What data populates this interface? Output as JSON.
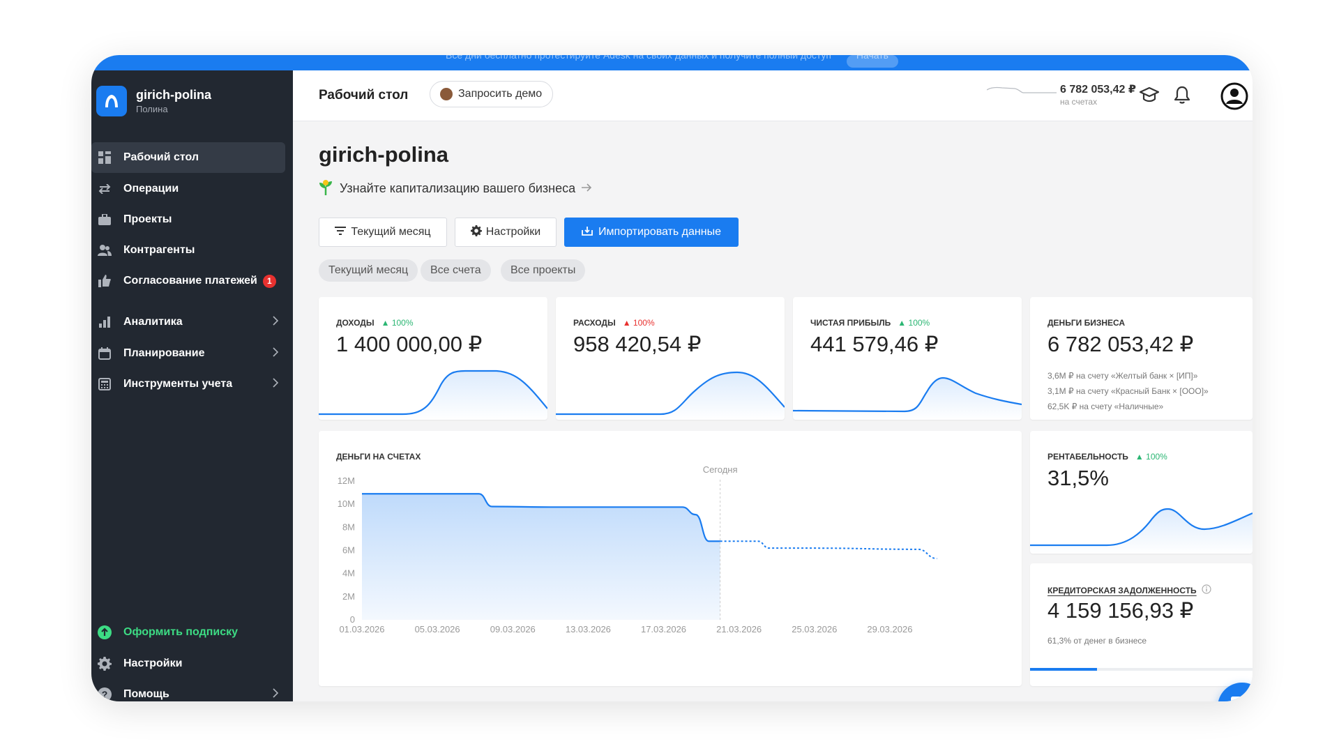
{
  "banner": {
    "text": "Все дни бесплатно протестируйте Adesk на своих данных и получите полный доступ",
    "button": "Начать"
  },
  "sidebar": {
    "brand": {
      "name": "girich-polina",
      "user": "Полина"
    },
    "items": [
      {
        "label": "Рабочий стол",
        "icon": "dashboard-icon",
        "active": true
      },
      {
        "label": "Операции",
        "icon": "transfer-icon"
      },
      {
        "label": "Проекты",
        "icon": "briefcase-icon"
      },
      {
        "label": "Контрагенты",
        "icon": "people-icon"
      },
      {
        "label": "Согласование платежей",
        "icon": "thumbs-up-icon",
        "badge": "1"
      },
      {
        "label": "Аналитика",
        "icon": "bar-chart-icon"
      },
      {
        "label": "Планирование",
        "icon": "calendar-icon"
      },
      {
        "label": "Инструменты учета",
        "icon": "calculator-icon"
      }
    ],
    "bottom": [
      {
        "label": "Оформить подписку",
        "icon": "arrow-up-circle-icon"
      },
      {
        "label": "Настройки",
        "icon": "gear-icon"
      },
      {
        "label": "Помощь",
        "icon": "help-icon"
      }
    ]
  },
  "topbar": {
    "title": "Рабочий стол",
    "demo": "Запросить демо",
    "balance": {
      "amount": "6 782 053,42 ₽",
      "sub": "на счетах"
    }
  },
  "main": {
    "heading": "girich-polina",
    "cap_link": "Узнайте капитализацию вашего бизнеса",
    "buttons": {
      "period": "Текущий месяц",
      "settings": "Настройки",
      "import": "Импортировать данные"
    },
    "chips": [
      "Текущий месяц",
      "Все счета",
      "Все проекты"
    ]
  },
  "cards": {
    "income": {
      "label": "ДОХОДЫ",
      "delta": "100%",
      "value": "1 400 000,00 ₽"
    },
    "expenses": {
      "label": "РАСХОДЫ",
      "delta": "100%",
      "value": "958 420,54 ₽"
    },
    "profit": {
      "label": "ЧИСТАЯ ПРИБЫЛЬ",
      "delta": "100%",
      "value": "441 579,46 ₽"
    },
    "business_money": {
      "label": "ДЕНЬГИ БИЗНЕСА",
      "value": "6 782 053,42 ₽",
      "notes": [
        "3,6M ₽ на счету «Желтый банк × [ИП]»",
        "3,1M ₽ на счету «Красный Банк × [ООО]»",
        "62,5K ₽ на счету «Наличные»"
      ]
    },
    "accounts": {
      "label": "ДЕНЬГИ НА СЧЕТАХ",
      "today": "Сегодня"
    },
    "rentability": {
      "label": "РЕНТАБЕЛЬНОСТЬ",
      "delta": "100%",
      "value": "31,5%"
    },
    "payables": {
      "label": "КРЕДИТОРСКАЯ ЗАДОЛЖЕННОСТЬ",
      "value": "4 159 156,93 ₽",
      "note": "61,3% от денег в бизнесе",
      "progress": 0.3
    }
  },
  "chart_data": {
    "type": "area",
    "title": "ДЕНЬГИ НА СЧЕТАХ",
    "y_ticks": [
      "12M",
      "10M",
      "8M",
      "6M",
      "4M",
      "2M",
      "0"
    ],
    "x_ticks": [
      "01.03.2026",
      "05.03.2026",
      "09.03.2026",
      "13.03.2026",
      "17.03.2026",
      "21.03.2026",
      "25.03.2026",
      "29.03.2026"
    ],
    "ylim": [
      0,
      12
    ],
    "today_marker": "Сегодня",
    "series": [
      {
        "style": "solid-area",
        "points": [
          [
            1,
            10.9
          ],
          [
            7.2,
            10.9
          ],
          [
            7.9,
            9.8
          ],
          [
            11,
            9.75
          ],
          [
            18,
            9.75
          ],
          [
            18.7,
            9.1
          ],
          [
            19.4,
            6.8
          ],
          [
            20,
            6.8
          ]
        ]
      },
      {
        "style": "dashed",
        "points": [
          [
            20,
            6.8
          ],
          [
            22,
            6.8
          ],
          [
            22.6,
            6.2
          ],
          [
            25,
            6.2
          ],
          [
            30.5,
            6.1
          ],
          [
            31.5,
            5.3
          ]
        ]
      }
    ],
    "x_start": 1,
    "x_end": 32
  },
  "colors": {
    "accent": "#1a7cf0",
    "sidebar": "#222831",
    "green": "#2bb673",
    "red": "#e8312f"
  }
}
